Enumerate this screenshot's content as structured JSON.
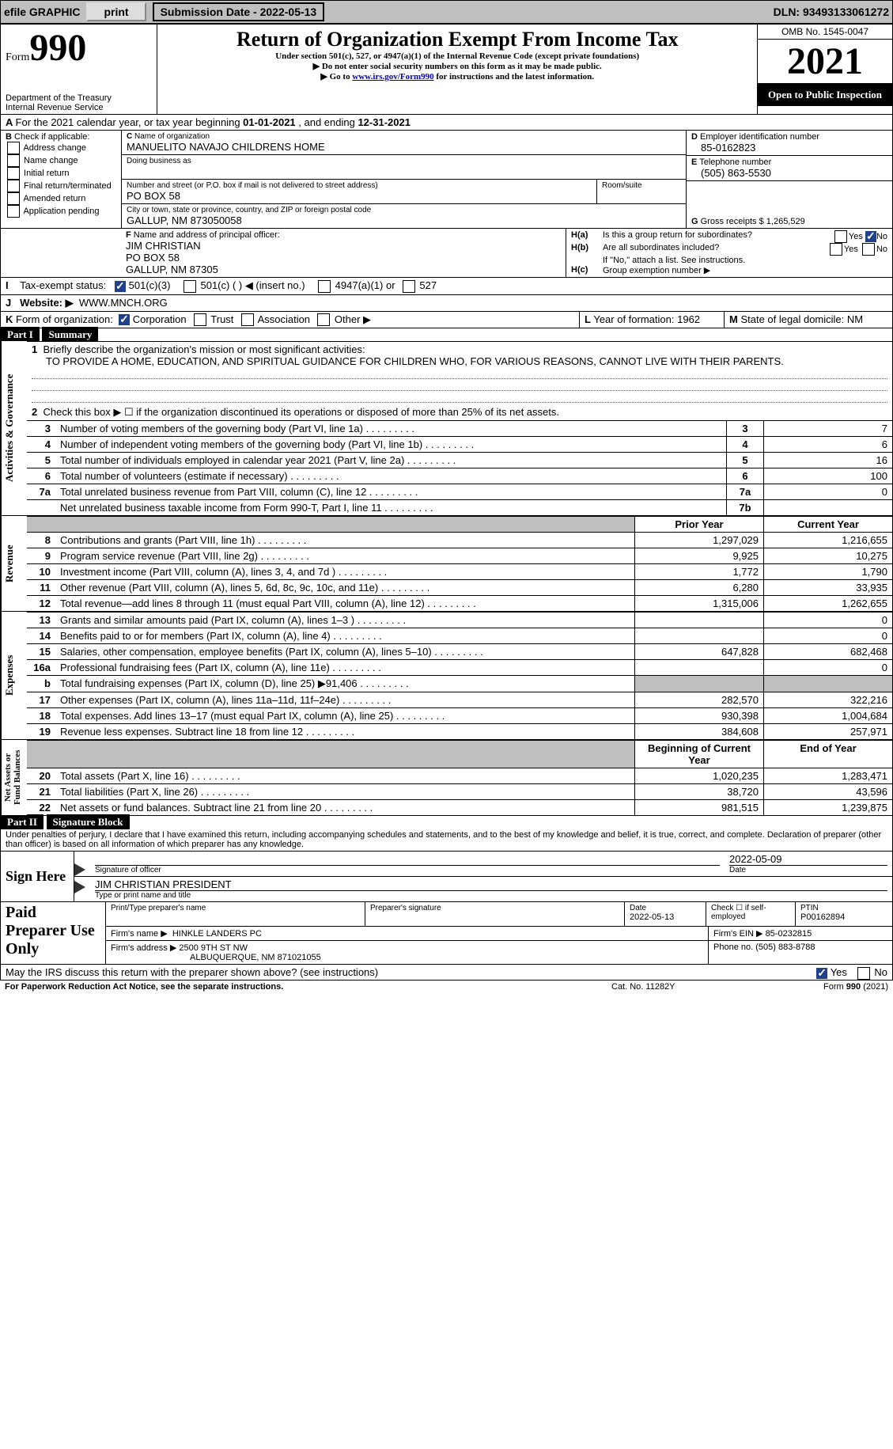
{
  "topbar": {
    "efile": "efile GRAPHIC",
    "print": "print",
    "submission_label": "Submission Date -",
    "submission_date": "2022-05-13",
    "dln_label": "DLN:",
    "dln": "93493133061272"
  },
  "header": {
    "form_word": "Form",
    "form_no": "990",
    "title": "Return of Organization Exempt From Income Tax",
    "subtitle": "Under section 501(c), 527, or 4947(a)(1) of the Internal Revenue Code (except private foundations)",
    "note1": "Do not enter social security numbers on this form as it may be made public.",
    "note2_pre": "Go to ",
    "note2_link": "www.irs.gov/Form990",
    "note2_post": " for instructions and the latest information.",
    "dept": "Department of the Treasury\nInternal Revenue Service",
    "omb": "OMB No. 1545-0047",
    "year": "2021",
    "open": "Open to Public Inspection"
  },
  "periodA": {
    "text_pre": "For the 2021 calendar year, or tax year beginning ",
    "begin": "01-01-2021",
    "text_mid": " , and ending ",
    "end": "12-31-2021"
  },
  "blockB": {
    "label": "Check if applicable:",
    "opts": [
      "Address change",
      "Name change",
      "Initial return",
      "Final return/terminated",
      "Amended return",
      "Application pending"
    ]
  },
  "blockC": {
    "name_label": "Name of organization",
    "name": "MANUELITO NAVAJO CHILDRENS HOME",
    "dba_label": "Doing business as",
    "addr_label": "Number and street (or P.O. box if mail is not delivered to street address)",
    "room_label": "Room/suite",
    "addr": "PO BOX 58",
    "city_label": "City or town, state or province, country, and ZIP or foreign postal code",
    "city": "GALLUP, NM  873050058"
  },
  "blockD": {
    "label": "Employer identification number",
    "value": "85-0162823"
  },
  "blockE": {
    "label": "Telephone number",
    "value": "(505) 863-5530"
  },
  "blockG": {
    "label": "Gross receipts $",
    "value": "1,265,529"
  },
  "blockF": {
    "label": "Name and address of principal officer:",
    "line1": "JIM CHRISTIAN",
    "line2": "PO BOX 58",
    "line3": "GALLUP, NM  87305"
  },
  "blockH": {
    "a": "Is this a group return for subordinates?",
    "b": "Are all subordinates included?",
    "b_note": "If \"No,\" attach a list. See instructions.",
    "c": "Group exemption number ▶",
    "yes": "Yes",
    "no": "No"
  },
  "rowI": {
    "label": "Tax-exempt status:",
    "o1": "501(c)(3)",
    "o2": "501(c) (  ) ◀ (insert no.)",
    "o3": "4947(a)(1) or",
    "o4": "527"
  },
  "rowJ": {
    "label": "Website: ▶",
    "value": "WWW.MNCH.ORG"
  },
  "rowK": {
    "label": "Form of organization:",
    "opts": [
      "Corporation",
      "Trust",
      "Association",
      "Other ▶"
    ]
  },
  "rowL": {
    "label": "Year of formation:",
    "value": "1962"
  },
  "rowM": {
    "label": "State of legal domicile:",
    "value": "NM"
  },
  "partI": {
    "part": "Part I",
    "title": "Summary",
    "q1_label": "Briefly describe the organization's mission or most significant activities:",
    "q1_text": "TO PROVIDE A HOME, EDUCATION, AND SPIRITUAL GUIDANCE FOR CHILDREN WHO, FOR VARIOUS REASONS, CANNOT LIVE WITH THEIR PARENTS.",
    "q2": "Check this box ▶ ☐  if the organization discontinued its operations or disposed of more than 25% of its net assets.",
    "lines_ag": [
      {
        "n": "3",
        "t": "Number of voting members of the governing body (Part VI, line 1a)",
        "b": "3",
        "v": "7"
      },
      {
        "n": "4",
        "t": "Number of independent voting members of the governing body (Part VI, line 1b)",
        "b": "4",
        "v": "6"
      },
      {
        "n": "5",
        "t": "Total number of individuals employed in calendar year 2021 (Part V, line 2a)",
        "b": "5",
        "v": "16"
      },
      {
        "n": "6",
        "t": "Total number of volunteers (estimate if necessary)",
        "b": "6",
        "v": "100"
      },
      {
        "n": "7a",
        "t": "Total unrelated business revenue from Part VIII, column (C), line 12",
        "b": "7a",
        "v": "0"
      },
      {
        "n": "",
        "t": "Net unrelated business taxable income from Form 990-T, Part I, line 11",
        "b": "7b",
        "v": ""
      }
    ],
    "col_prior": "Prior Year",
    "col_current": "Current Year",
    "rev": [
      {
        "n": "8",
        "t": "Contributions and grants (Part VIII, line 1h)",
        "p": "1,297,029",
        "c": "1,216,655"
      },
      {
        "n": "9",
        "t": "Program service revenue (Part VIII, line 2g)",
        "p": "9,925",
        "c": "10,275"
      },
      {
        "n": "10",
        "t": "Investment income (Part VIII, column (A), lines 3, 4, and 7d )",
        "p": "1,772",
        "c": "1,790"
      },
      {
        "n": "11",
        "t": "Other revenue (Part VIII, column (A), lines 5, 6d, 8c, 9c, 10c, and 11e)",
        "p": "6,280",
        "c": "33,935"
      },
      {
        "n": "12",
        "t": "Total revenue—add lines 8 through 11 (must equal Part VIII, column (A), line 12)",
        "p": "1,315,006",
        "c": "1,262,655"
      }
    ],
    "exp": [
      {
        "n": "13",
        "t": "Grants and similar amounts paid (Part IX, column (A), lines 1–3 )",
        "p": "",
        "c": "0"
      },
      {
        "n": "14",
        "t": "Benefits paid to or for members (Part IX, column (A), line 4)",
        "p": "",
        "c": "0"
      },
      {
        "n": "15",
        "t": "Salaries, other compensation, employee benefits (Part IX, column (A), lines 5–10)",
        "p": "647,828",
        "c": "682,468"
      },
      {
        "n": "16a",
        "t": "Professional fundraising fees (Part IX, column (A), line 11e)",
        "p": "",
        "c": "0"
      },
      {
        "n": "b",
        "t": "Total fundraising expenses (Part IX, column (D), line 25) ▶91,406",
        "p": "SHADE",
        "c": "SHADE"
      },
      {
        "n": "17",
        "t": "Other expenses (Part IX, column (A), lines 11a–11d, 11f–24e)",
        "p": "282,570",
        "c": "322,216"
      },
      {
        "n": "18",
        "t": "Total expenses. Add lines 13–17 (must equal Part IX, column (A), line 25)",
        "p": "930,398",
        "c": "1,004,684"
      },
      {
        "n": "19",
        "t": "Revenue less expenses. Subtract line 18 from line 12",
        "p": "384,608",
        "c": "257,971"
      }
    ],
    "col_begin": "Beginning of Current Year",
    "col_end": "End of Year",
    "net": [
      {
        "n": "20",
        "t": "Total assets (Part X, line 16)",
        "p": "1,020,235",
        "c": "1,283,471"
      },
      {
        "n": "21",
        "t": "Total liabilities (Part X, line 26)",
        "p": "38,720",
        "c": "43,596"
      },
      {
        "n": "22",
        "t": "Net assets or fund balances. Subtract line 21 from line 20",
        "p": "981,515",
        "c": "1,239,875"
      }
    ],
    "vlabels": {
      "ag": "Activities & Governance",
      "rev": "Revenue",
      "exp": "Expenses",
      "net": "Net Assets or\nFund Balances"
    }
  },
  "partII": {
    "part": "Part II",
    "title": "Signature Block",
    "decl": "Under penalties of perjury, I declare that I have examined this return, including accompanying schedules and statements, and to the best of my knowledge and belief, it is true, correct, and complete. Declaration of preparer (other than officer) is based on all information of which preparer has any knowledge.",
    "sign_here": "Sign Here",
    "sig_officer": "Signature of officer",
    "sig_date": "2022-05-09",
    "date_label": "Date",
    "officer_name": "JIM CHRISTIAN  PRESIDENT",
    "type_label": "Type or print name and title",
    "paid": "Paid Preparer Use Only",
    "prep_name_label": "Print/Type preparer's name",
    "prep_sig_label": "Preparer's signature",
    "prep_date_label": "Date",
    "prep_date": "2022-05-13",
    "check_self": "Check ☐ if self-employed",
    "ptin_label": "PTIN",
    "ptin": "P00162894",
    "firm_name_label": "Firm's name    ▶",
    "firm_name": "HINKLE LANDERS PC",
    "firm_ein_label": "Firm's EIN ▶",
    "firm_ein": "85-0232815",
    "firm_addr_label": "Firm's address ▶",
    "firm_addr1": "2500 9TH ST NW",
    "firm_addr2": "ALBUQUERQUE, NM  871021055",
    "phone_label": "Phone no.",
    "phone": "(505) 883-8788",
    "may_irs": "May the IRS discuss this return with the preparer shown above? (see instructions)",
    "yes": "Yes",
    "no": "No"
  },
  "footer": {
    "left": "For Paperwork Reduction Act Notice, see the separate instructions.",
    "mid": "Cat. No. 11282Y",
    "right": "Form 990 (2021)"
  },
  "colors": {
    "checkbox": "#20418a",
    "link": "#0000cc",
    "shade": "#bfbfbf"
  }
}
